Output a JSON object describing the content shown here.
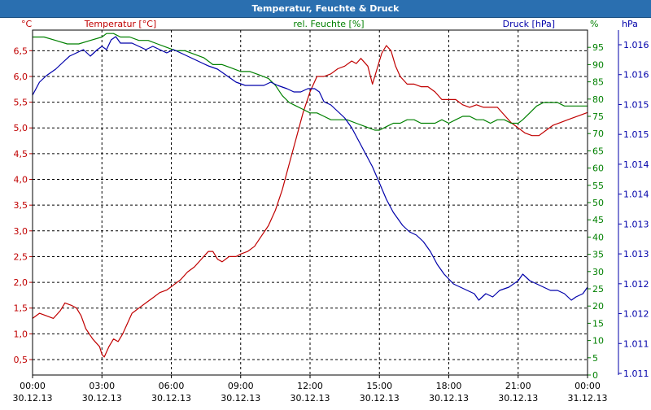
{
  "window": {
    "title": "Temperatur, Feuchte & Druck"
  },
  "colors": {
    "temp": "#c00000",
    "hum": "#008000",
    "press": "#0000aa",
    "grid": "#000000",
    "axis": "#000000"
  },
  "chart_data": {
    "type": "line",
    "title": "Temperatur, Feuchte & Druck",
    "x_hours": [
      0,
      24
    ],
    "x_ticks": [
      {
        "h": 0,
        "time": "00:00",
        "date": "30.12.13"
      },
      {
        "h": 3,
        "time": "03:00",
        "date": "30.12.13"
      },
      {
        "h": 6,
        "time": "06:00",
        "date": "30.12.13"
      },
      {
        "h": 9,
        "time": "09:00",
        "date": "30.12.13"
      },
      {
        "h": 12,
        "time": "12:00",
        "date": "30.12.13"
      },
      {
        "h": 15,
        "time": "15:00",
        "date": "30.12.13"
      },
      {
        "h": 18,
        "time": "18:00",
        "date": "30.12.13"
      },
      {
        "h": 21,
        "time": "21:00",
        "date": "30.12.13"
      },
      {
        "h": 24,
        "time": "00:00",
        "date": "31.12.13"
      }
    ],
    "axes": {
      "temp": {
        "unit": "°C",
        "label": "Temperatur [°C]",
        "range": [
          0.2,
          6.9
        ],
        "ticks": [
          "0,5",
          "1,0",
          "1,5",
          "2,0",
          "2,5",
          "3,0",
          "3,5",
          "4,0",
          "4,5",
          "5,0",
          "5,5",
          "6,0",
          "6,5"
        ]
      },
      "hum": {
        "unit": "%",
        "label": "rel. Feuchte [%]",
        "range": [
          0,
          100
        ],
        "ticks": [
          "0",
          "5",
          "10",
          "15",
          "20",
          "25",
          "30",
          "35",
          "40",
          "45",
          "50",
          "55",
          "60",
          "65",
          "70",
          "75",
          "80",
          "85",
          "90",
          "95"
        ]
      },
      "press": {
        "unit": "hPa",
        "label": "Druck [hPa]",
        "range": [
          1011.0,
          1016.3
        ],
        "ticks": [
          "1.011",
          "1.011",
          "1.012",
          "1.012",
          "1.013",
          "1.013",
          "1.014",
          "1.014",
          "1.015",
          "1.015",
          "1.016",
          "1.016"
        ]
      }
    },
    "series": [
      {
        "name": "Temperatur [°C]",
        "axis": "temp",
        "color": "#c00000",
        "points": [
          [
            0,
            1.3
          ],
          [
            0.3,
            1.4
          ],
          [
            0.6,
            1.35
          ],
          [
            0.9,
            1.3
          ],
          [
            1.2,
            1.45
          ],
          [
            1.4,
            1.6
          ],
          [
            1.7,
            1.55
          ],
          [
            1.9,
            1.5
          ],
          [
            2.1,
            1.35
          ],
          [
            2.3,
            1.1
          ],
          [
            2.6,
            0.9
          ],
          [
            2.9,
            0.75
          ],
          [
            3.0,
            0.6
          ],
          [
            3.1,
            0.55
          ],
          [
            3.3,
            0.75
          ],
          [
            3.5,
            0.9
          ],
          [
            3.7,
            0.85
          ],
          [
            3.9,
            1.0
          ],
          [
            4.1,
            1.2
          ],
          [
            4.3,
            1.4
          ],
          [
            4.6,
            1.5
          ],
          [
            4.9,
            1.6
          ],
          [
            5.2,
            1.7
          ],
          [
            5.5,
            1.8
          ],
          [
            5.8,
            1.85
          ],
          [
            6.1,
            1.95
          ],
          [
            6.4,
            2.05
          ],
          [
            6.7,
            2.2
          ],
          [
            7.0,
            2.3
          ],
          [
            7.3,
            2.45
          ],
          [
            7.6,
            2.6
          ],
          [
            7.8,
            2.6
          ],
          [
            8.0,
            2.45
          ],
          [
            8.2,
            2.4
          ],
          [
            8.5,
            2.5
          ],
          [
            8.8,
            2.5
          ],
          [
            9.0,
            2.55
          ],
          [
            9.3,
            2.6
          ],
          [
            9.6,
            2.7
          ],
          [
            9.9,
            2.9
          ],
          [
            10.2,
            3.1
          ],
          [
            10.5,
            3.4
          ],
          [
            10.8,
            3.8
          ],
          [
            11.1,
            4.3
          ],
          [
            11.4,
            4.8
          ],
          [
            11.7,
            5.3
          ],
          [
            12.0,
            5.7
          ],
          [
            12.3,
            6.0
          ],
          [
            12.6,
            6.0
          ],
          [
            12.9,
            6.05
          ],
          [
            13.2,
            6.15
          ],
          [
            13.5,
            6.2
          ],
          [
            13.8,
            6.3
          ],
          [
            14.0,
            6.25
          ],
          [
            14.2,
            6.35
          ],
          [
            14.5,
            6.2
          ],
          [
            14.7,
            5.85
          ],
          [
            14.9,
            6.15
          ],
          [
            15.1,
            6.45
          ],
          [
            15.3,
            6.6
          ],
          [
            15.5,
            6.5
          ],
          [
            15.7,
            6.2
          ],
          [
            15.9,
            6.0
          ],
          [
            16.2,
            5.85
          ],
          [
            16.5,
            5.85
          ],
          [
            16.8,
            5.8
          ],
          [
            17.1,
            5.8
          ],
          [
            17.4,
            5.7
          ],
          [
            17.7,
            5.55
          ],
          [
            18.0,
            5.55
          ],
          [
            18.3,
            5.55
          ],
          [
            18.6,
            5.45
          ],
          [
            18.9,
            5.4
          ],
          [
            19.2,
            5.45
          ],
          [
            19.5,
            5.4
          ],
          [
            19.8,
            5.4
          ],
          [
            20.1,
            5.4
          ],
          [
            20.4,
            5.25
          ],
          [
            20.7,
            5.1
          ],
          [
            21.0,
            5.0
          ],
          [
            21.3,
            4.9
          ],
          [
            21.6,
            4.85
          ],
          [
            21.9,
            4.85
          ],
          [
            22.2,
            4.95
          ],
          [
            22.5,
            5.05
          ],
          [
            22.8,
            5.1
          ],
          [
            23.1,
            5.15
          ],
          [
            23.4,
            5.2
          ],
          [
            23.7,
            5.25
          ],
          [
            24.0,
            5.3
          ]
        ]
      },
      {
        "name": "rel. Feuchte [%]",
        "axis": "hum",
        "color": "#008000",
        "points": [
          [
            0,
            98
          ],
          [
            0.5,
            98
          ],
          [
            1.0,
            97
          ],
          [
            1.5,
            96
          ],
          [
            2.0,
            96
          ],
          [
            2.5,
            97
          ],
          [
            3.0,
            98
          ],
          [
            3.2,
            99
          ],
          [
            3.5,
            99
          ],
          [
            3.8,
            98
          ],
          [
            4.2,
            98
          ],
          [
            4.6,
            97
          ],
          [
            5.0,
            97
          ],
          [
            5.4,
            96
          ],
          [
            5.8,
            95
          ],
          [
            6.2,
            94
          ],
          [
            6.6,
            94
          ],
          [
            7.0,
            93
          ],
          [
            7.4,
            92
          ],
          [
            7.8,
            90
          ],
          [
            8.2,
            90
          ],
          [
            8.6,
            89
          ],
          [
            9.0,
            88
          ],
          [
            9.4,
            88
          ],
          [
            9.8,
            87
          ],
          [
            10.2,
            86
          ],
          [
            10.5,
            84
          ],
          [
            10.8,
            81
          ],
          [
            11.1,
            79
          ],
          [
            11.4,
            78
          ],
          [
            11.7,
            77
          ],
          [
            12.0,
            76
          ],
          [
            12.3,
            76
          ],
          [
            12.6,
            75
          ],
          [
            12.9,
            74
          ],
          [
            13.2,
            74
          ],
          [
            13.6,
            74
          ],
          [
            14.0,
            73
          ],
          [
            14.4,
            72
          ],
          [
            14.8,
            71
          ],
          [
            15.0,
            71
          ],
          [
            15.3,
            72
          ],
          [
            15.6,
            73
          ],
          [
            15.9,
            73
          ],
          [
            16.2,
            74
          ],
          [
            16.5,
            74
          ],
          [
            16.8,
            73
          ],
          [
            17.1,
            73
          ],
          [
            17.4,
            73
          ],
          [
            17.7,
            74
          ],
          [
            18.0,
            73
          ],
          [
            18.3,
            74
          ],
          [
            18.6,
            75
          ],
          [
            18.9,
            75
          ],
          [
            19.2,
            74
          ],
          [
            19.5,
            74
          ],
          [
            19.8,
            73
          ],
          [
            20.1,
            74
          ],
          [
            20.4,
            74
          ],
          [
            20.7,
            73
          ],
          [
            21.0,
            73
          ],
          [
            21.2,
            74
          ],
          [
            21.5,
            76
          ],
          [
            21.8,
            78
          ],
          [
            22.1,
            79
          ],
          [
            22.4,
            79
          ],
          [
            22.7,
            79
          ],
          [
            23.0,
            78
          ],
          [
            23.3,
            78
          ],
          [
            23.6,
            78
          ],
          [
            24.0,
            78
          ]
        ]
      },
      {
        "name": "Druck [hPa]",
        "axis": "press",
        "color": "#0000aa",
        "points": [
          [
            0,
            1015.3
          ],
          [
            0.3,
            1015.5
          ],
          [
            0.6,
            1015.6
          ],
          [
            1.0,
            1015.7
          ],
          [
            1.3,
            1015.8
          ],
          [
            1.6,
            1015.9
          ],
          [
            1.9,
            1015.95
          ],
          [
            2.2,
            1016.0
          ],
          [
            2.5,
            1015.9
          ],
          [
            2.8,
            1016.0
          ],
          [
            3.0,
            1016.05
          ],
          [
            3.2,
            1016.0
          ],
          [
            3.4,
            1016.15
          ],
          [
            3.6,
            1016.2
          ],
          [
            3.8,
            1016.1
          ],
          [
            4.0,
            1016.1
          ],
          [
            4.3,
            1016.1
          ],
          [
            4.6,
            1016.05
          ],
          [
            4.9,
            1016.0
          ],
          [
            5.2,
            1016.05
          ],
          [
            5.5,
            1016.0
          ],
          [
            5.8,
            1015.95
          ],
          [
            6.1,
            1016.0
          ],
          [
            6.4,
            1015.95
          ],
          [
            6.7,
            1015.9
          ],
          [
            7.0,
            1015.85
          ],
          [
            7.3,
            1015.8
          ],
          [
            7.6,
            1015.75
          ],
          [
            8.0,
            1015.7
          ],
          [
            8.4,
            1015.6
          ],
          [
            8.8,
            1015.5
          ],
          [
            9.2,
            1015.45
          ],
          [
            9.6,
            1015.45
          ],
          [
            10.0,
            1015.45
          ],
          [
            10.3,
            1015.5
          ],
          [
            10.6,
            1015.45
          ],
          [
            11.0,
            1015.4
          ],
          [
            11.3,
            1015.35
          ],
          [
            11.6,
            1015.35
          ],
          [
            11.9,
            1015.4
          ],
          [
            12.2,
            1015.4
          ],
          [
            12.4,
            1015.35
          ],
          [
            12.6,
            1015.2
          ],
          [
            12.9,
            1015.15
          ],
          [
            13.2,
            1015.05
          ],
          [
            13.5,
            1014.95
          ],
          [
            13.8,
            1014.8
          ],
          [
            14.1,
            1014.6
          ],
          [
            14.4,
            1014.4
          ],
          [
            14.7,
            1014.2
          ],
          [
            15.0,
            1013.95
          ],
          [
            15.3,
            1013.7
          ],
          [
            15.6,
            1013.5
          ],
          [
            16.0,
            1013.3
          ],
          [
            16.3,
            1013.2
          ],
          [
            16.6,
            1013.15
          ],
          [
            16.9,
            1013.05
          ],
          [
            17.2,
            1012.9
          ],
          [
            17.5,
            1012.7
          ],
          [
            17.8,
            1012.55
          ],
          [
            18.2,
            1012.4
          ],
          [
            18.5,
            1012.35
          ],
          [
            18.8,
            1012.3
          ],
          [
            19.1,
            1012.25
          ],
          [
            19.3,
            1012.15
          ],
          [
            19.6,
            1012.25
          ],
          [
            19.9,
            1012.2
          ],
          [
            20.2,
            1012.3
          ],
          [
            20.6,
            1012.35
          ],
          [
            21.0,
            1012.45
          ],
          [
            21.2,
            1012.55
          ],
          [
            21.5,
            1012.45
          ],
          [
            21.8,
            1012.4
          ],
          [
            22.1,
            1012.35
          ],
          [
            22.4,
            1012.3
          ],
          [
            22.7,
            1012.3
          ],
          [
            23.0,
            1012.25
          ],
          [
            23.3,
            1012.15
          ],
          [
            23.5,
            1012.2
          ],
          [
            23.8,
            1012.25
          ],
          [
            24.0,
            1012.35
          ]
        ]
      }
    ]
  }
}
